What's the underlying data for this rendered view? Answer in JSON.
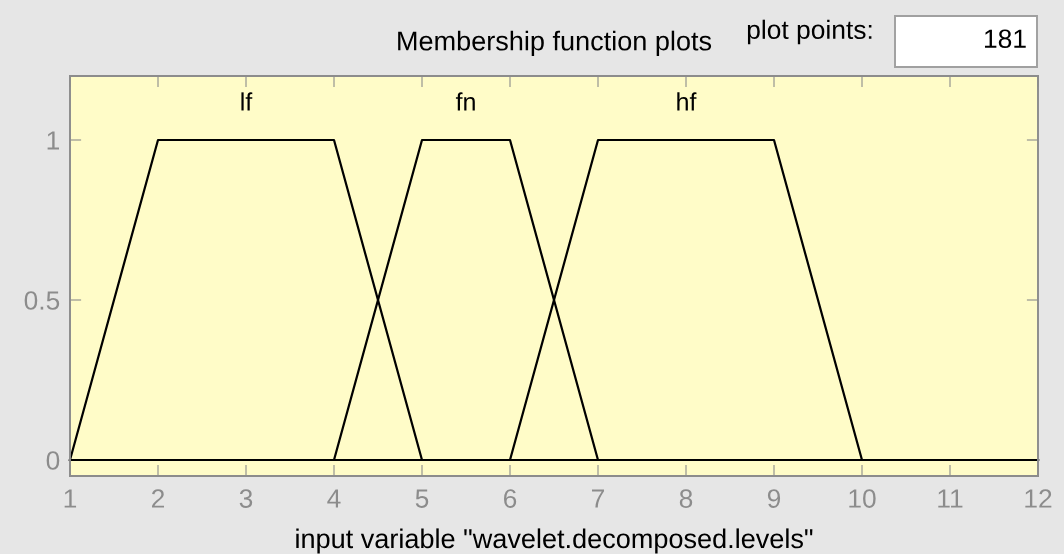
{
  "chart_data": {
    "type": "line",
    "title": "Membership function plots",
    "xlabel": "input variable \"wavelet.decomposed.levels\"",
    "series": [
      {
        "name": "lf",
        "color": "#000000",
        "x": [
          1,
          2,
          4,
          5,
          12
        ],
        "values": [
          0,
          1,
          1,
          0,
          0
        ]
      },
      {
        "name": "fn",
        "color": "#000000",
        "x": [
          1,
          4,
          5,
          6,
          7,
          12
        ],
        "values": [
          0,
          0,
          1,
          1,
          0,
          0
        ]
      },
      {
        "name": "hf",
        "color": "#000000",
        "x": [
          1,
          6,
          7,
          9,
          10,
          12
        ],
        "values": [
          0,
          0,
          1,
          1,
          0,
          0
        ]
      }
    ],
    "xlim": [
      1,
      12
    ],
    "xticks": [
      1,
      2,
      3,
      4,
      5,
      6,
      7,
      8,
      9,
      10,
      11,
      12
    ],
    "ylim": [
      -0.05,
      1.2
    ],
    "yticks": [
      0,
      0.5,
      1
    ],
    "grid": false,
    "marker": "none",
    "line_style": "solid",
    "annotations": [
      "plot points:",
      "181"
    ]
  }
}
